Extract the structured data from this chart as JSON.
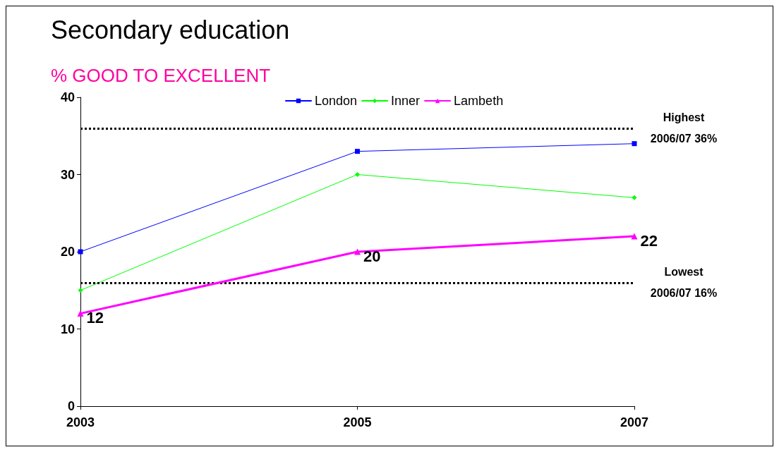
{
  "chart_data": {
    "type": "line",
    "title": "Secondary education",
    "subtitle": "% GOOD TO EXCELLENT",
    "x": [
      2003,
      2005,
      2007
    ],
    "series": [
      {
        "name": "London",
        "color": "#0000ff",
        "marker": "square",
        "values": [
          20,
          33,
          34
        ]
      },
      {
        "name": "Inner",
        "color": "#00ff00",
        "marker": "diamond",
        "values": [
          15,
          30,
          27
        ]
      },
      {
        "name": "Lambeth",
        "color": "#ff00ff",
        "marker": "triangle",
        "values": [
          12,
          20,
          22
        ],
        "value_labels": [
          "12",
          "20",
          "22"
        ]
      }
    ],
    "xlim": [
      2003,
      2007
    ],
    "xticks": [
      2003,
      2005,
      2007
    ],
    "ylim": [
      0,
      40
    ],
    "yticks": [
      0,
      10,
      20,
      30,
      40
    ],
    "ref_lines": [
      {
        "axis": "y",
        "value": 36,
        "label": "Highest\n2006/07 36%",
        "color": "#000000",
        "line_style": "dotted"
      },
      {
        "axis": "y",
        "value": 16,
        "label": "Lowest\n2006/07 16%",
        "color": "#000000",
        "line_style": "dotted"
      }
    ],
    "grid": false,
    "legend": "top",
    "line_style": "solid"
  }
}
